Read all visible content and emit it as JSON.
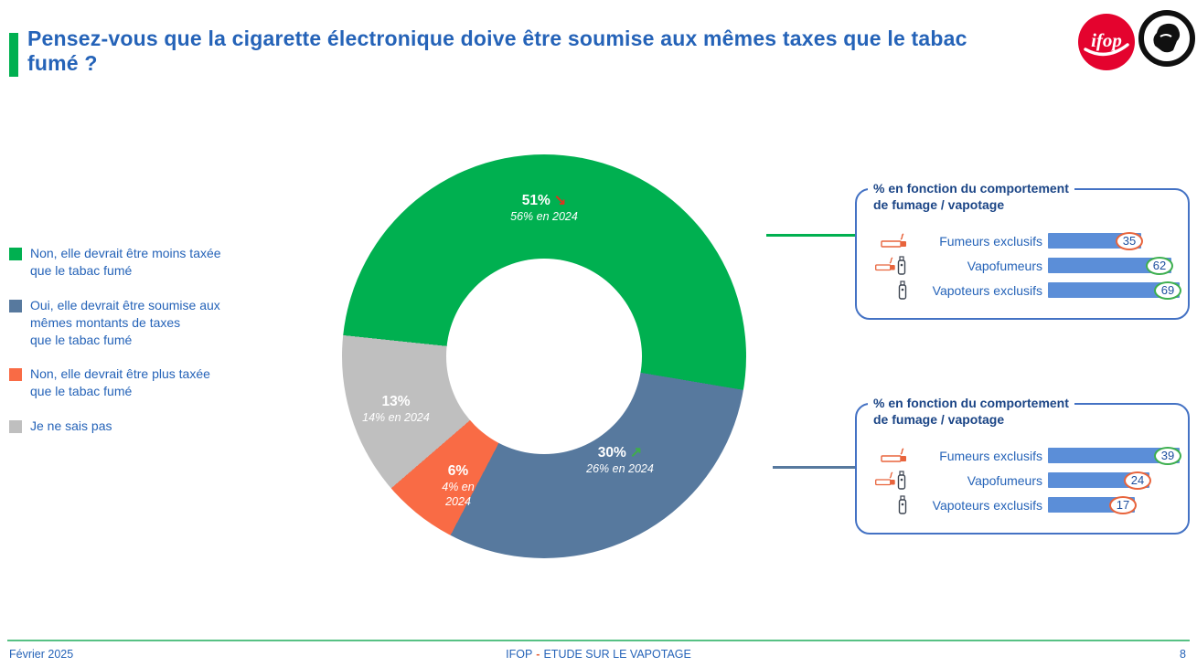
{
  "header": {
    "title": "Pensez-vous que la cigarette électronique doive être soumise aux mêmes taxes que le tabac fumé ?",
    "accent_color": "#00b050",
    "ifop_logo_text": "ifop"
  },
  "chart_data": [
    {
      "type": "pie",
      "donut": true,
      "start_angle_deg": -84,
      "legend_position": "left",
      "segments": [
        {
          "legend_label": "Non, elle devrait être moins taxée\nque le tabac fumé",
          "value": 51,
          "value_label": "51%",
          "prev_label": "56% en 2024",
          "trend": "down",
          "trend_arrow": "↘",
          "trend_color": "#e0321f",
          "color": "#00b050"
        },
        {
          "legend_label": "Oui, elle devrait être soumise aux\nmêmes montants de taxes\nque le tabac fumé",
          "value": 30,
          "value_label": "30%",
          "prev_label": "26% en 2024",
          "trend": "up",
          "trend_arrow": "↗",
          "trend_color": "#3fae49",
          "color": "#57799e"
        },
        {
          "legend_label": "Non, elle devrait être plus taxée\nque le tabac fumé",
          "value": 6,
          "value_label": "6%",
          "prev_label": "4% en 2024",
          "color": "#f96b45"
        },
        {
          "legend_label": "Je ne sais pas",
          "value": 13,
          "value_label": "13%",
          "prev_label": "14% en 2024",
          "color": "#bfbfbf"
        }
      ]
    },
    {
      "type": "bar",
      "orientation": "horizontal",
      "title": "% en fonction du comportement\nde fumage / vapotage",
      "categories": [
        "Fumeurs exclusifs",
        "Vapofumeurs",
        "Vapoteurs exclusifs"
      ],
      "icons": [
        "cigarette-icon",
        "cigarette-vape-icon",
        "vape-icon"
      ],
      "values": [
        35,
        62,
        69
      ],
      "circle_colors": [
        "#e8643c",
        "#3daf4e",
        "#3daf4e"
      ],
      "bar_color": "#5b8ed8"
    },
    {
      "type": "bar",
      "orientation": "horizontal",
      "title": "% en fonction du comportement\nde fumage / vapotage",
      "categories": [
        "Fumeurs exclusifs",
        "Vapofumeurs",
        "Vapoteurs exclusifs"
      ],
      "icons": [
        "cigarette-icon",
        "cigarette-vape-icon",
        "vape-icon"
      ],
      "values": [
        39,
        24,
        17
      ],
      "circle_colors": [
        "#3daf4e",
        "#e8643c",
        "#e8643c"
      ],
      "bar_color": "#5b8ed8"
    }
  ],
  "footer": {
    "date": "Février 2025",
    "center_prefix": "IFOP",
    "center_dash": "-",
    "dash_color": "#e8643c",
    "center_suffix": "ETUDE SUR LE VAPOTAGE",
    "page": "8"
  }
}
